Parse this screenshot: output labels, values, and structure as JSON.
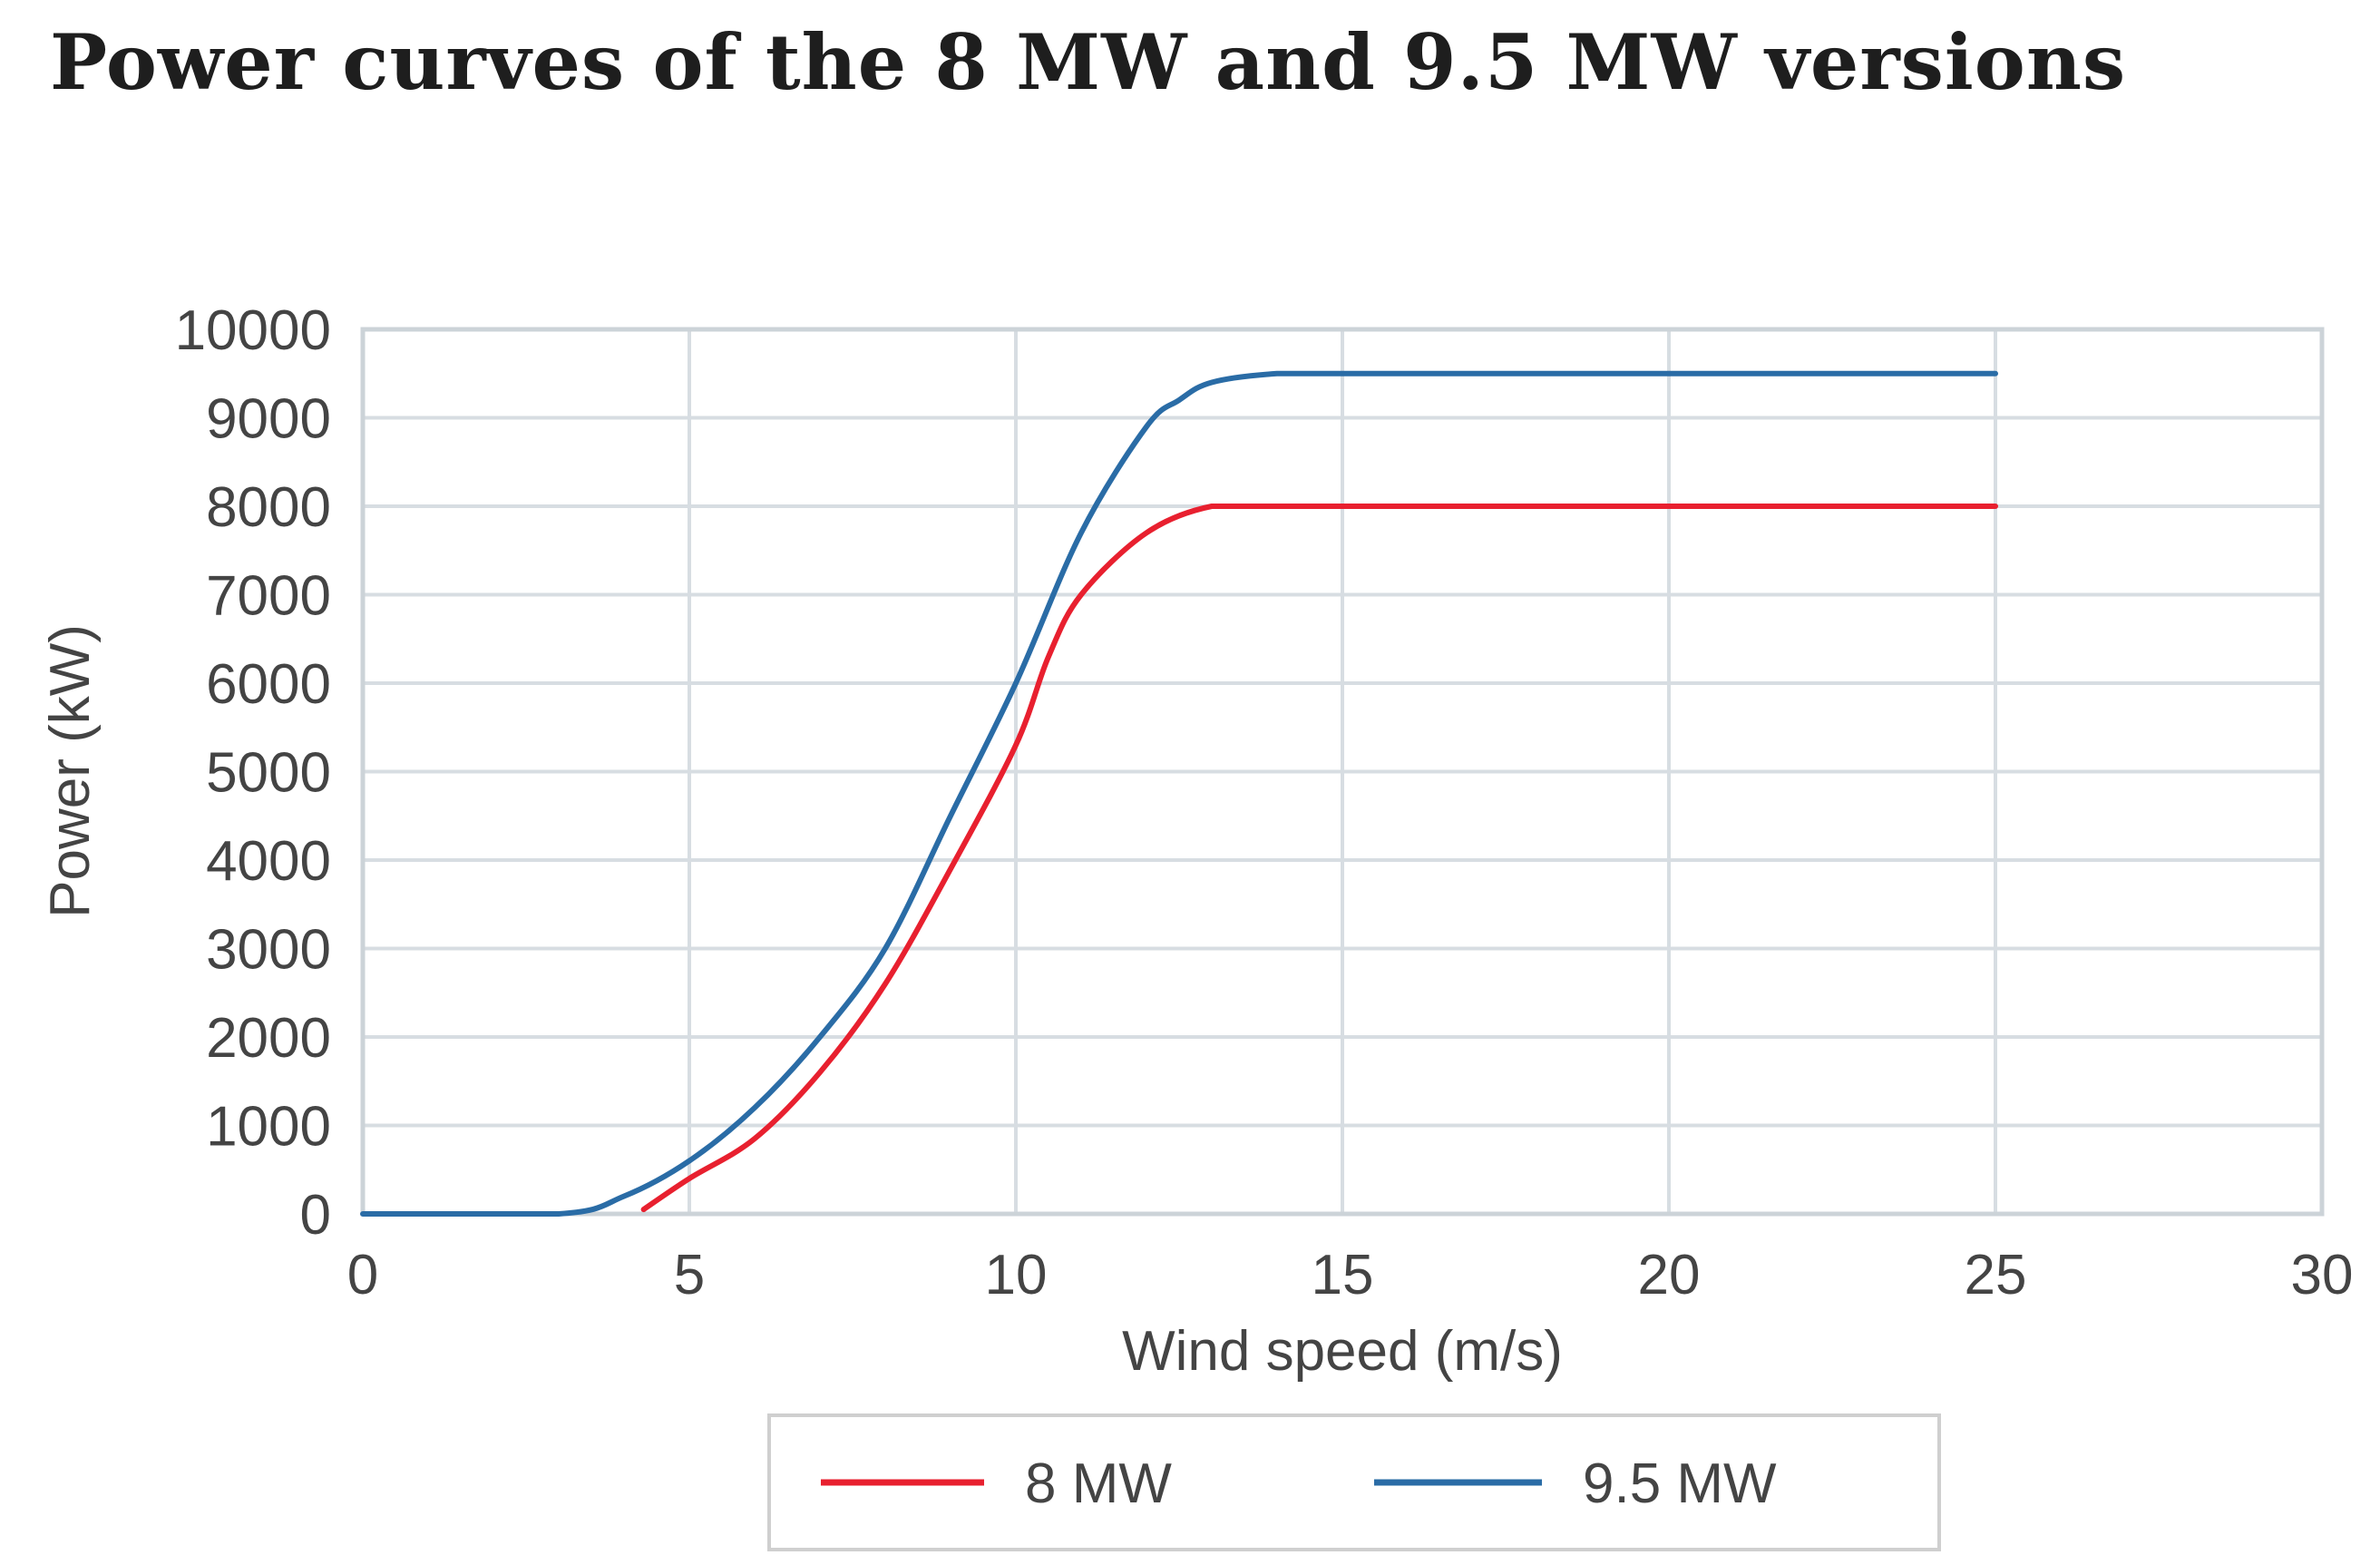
{
  "chart_data": {
    "type": "line",
    "title": "Power curves of the 8 MW and 9.5 MW versions",
    "xlabel": "Wind speed (m/s)",
    "ylabel": "Power (kW)",
    "xlim": [
      0,
      30
    ],
    "ylim": [
      0,
      10000
    ],
    "x_ticks": [
      "0",
      "5",
      "10",
      "15",
      "20",
      "25",
      "30"
    ],
    "y_ticks": [
      "0",
      "1000",
      "2000",
      "3000",
      "4000",
      "5000",
      "6000",
      "7000",
      "8000",
      "9000",
      "10000"
    ],
    "grid": true,
    "legend_position": "bottom-center",
    "series": [
      {
        "name": "8 MW",
        "color": "#e8202f",
        "x": [
          4.3,
          5,
          6,
          7,
          8,
          9,
          10,
          10.5,
          11,
          12,
          13,
          14,
          15,
          20,
          25
        ],
        "y": [
          50,
          400,
          850,
          1600,
          2600,
          3900,
          5300,
          6300,
          7000,
          7700,
          8000,
          8000,
          8000,
          8000,
          8000
        ]
      },
      {
        "name": "9.5 MW",
        "color": "#2a6ca6",
        "x": [
          0,
          3,
          4,
          5,
          6,
          7,
          8,
          9,
          10,
          11,
          12,
          12.5,
          13,
          14,
          15,
          20,
          25
        ],
        "y": [
          0,
          0,
          200,
          600,
          1200,
          2000,
          3000,
          4500,
          6000,
          7700,
          8900,
          9200,
          9400,
          9500,
          9500,
          9500,
          9500
        ]
      }
    ]
  }
}
